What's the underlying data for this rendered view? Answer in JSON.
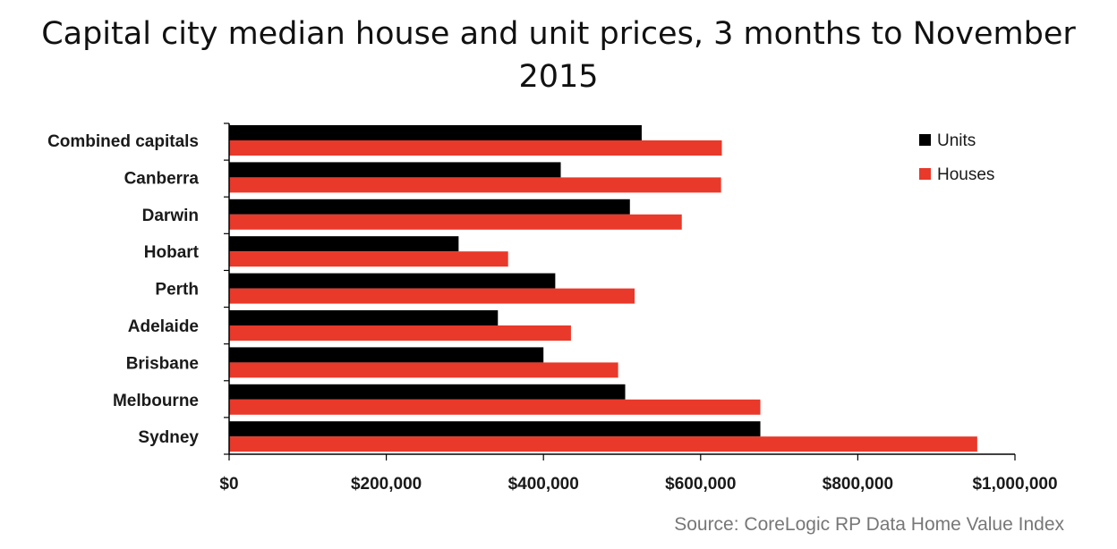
{
  "chart_data": {
    "type": "bar",
    "orientation": "horizontal",
    "title": "Capital city median house and unit prices, 3 months to November 2015",
    "title_lines": [
      "Capital city median house and unit prices, 3 months to November",
      "2015"
    ],
    "categories": [
      "Combined capitals",
      "Canberra",
      "Darwin",
      "Hobart",
      "Perth",
      "Adelaide",
      "Brisbane",
      "Melbourne",
      "Sydney"
    ],
    "series": [
      {
        "name": "Units",
        "color": "#000000",
        "values": [
          525000,
          422000,
          510000,
          292000,
          415000,
          342000,
          400000,
          504000,
          676000
        ]
      },
      {
        "name": "Houses",
        "color": "#e8392a",
        "values": [
          627000,
          626000,
          576000,
          355000,
          516000,
          435000,
          495000,
          676000,
          952000
        ]
      }
    ],
    "xlim": [
      0,
      1000000
    ],
    "xticks": [
      0,
      200000,
      400000,
      600000,
      800000,
      1000000
    ],
    "xtick_labels": [
      "$0",
      "$200,000",
      "$400,000",
      "$600,000",
      "$800,000",
      "$1,000,000"
    ],
    "xlabel": "",
    "ylabel": "",
    "grid": false,
    "legend": {
      "position": "top-right",
      "entries": [
        "Units",
        "Houses"
      ]
    },
    "source": "Source: CoreLogic RP Data Home Value Index"
  }
}
